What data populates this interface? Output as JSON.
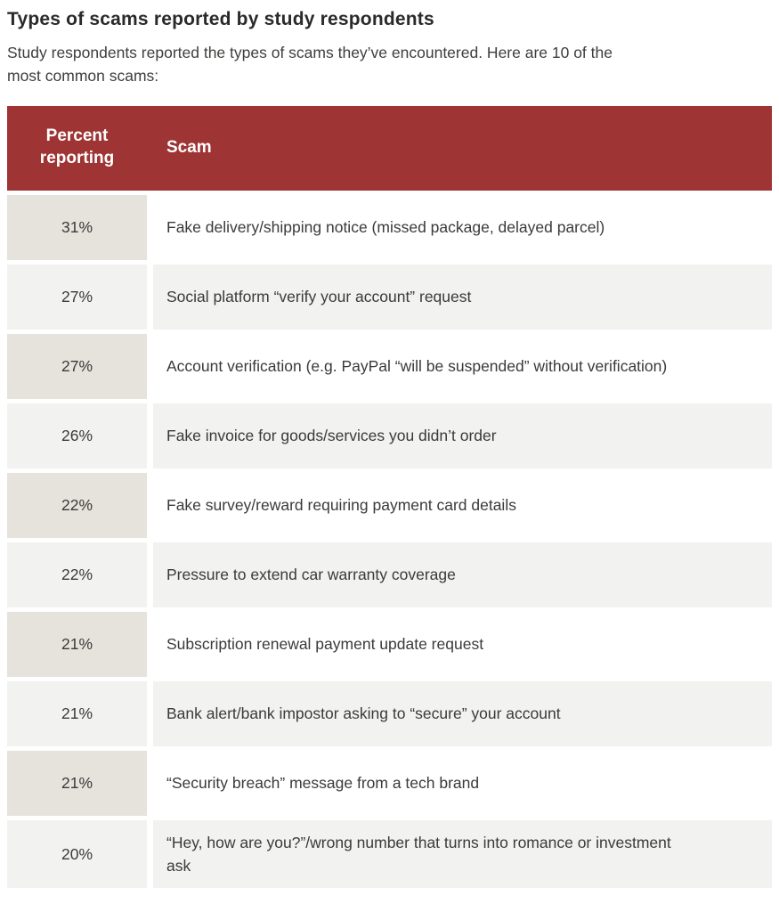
{
  "figure": {
    "title": "Types of scams reported by study respondents",
    "subtitle": "Study respondents reported the types of scams they’ve encountered. Here are 10 of the most common scams:"
  },
  "chart_data": {
    "type": "table",
    "title": "Types of scams reported by study respondents",
    "columns": [
      "Percent reporting",
      "Scam"
    ],
    "rows": [
      {
        "percent": "31%",
        "value": 31,
        "scam": "Fake delivery/shipping notice (missed package, delayed parcel)"
      },
      {
        "percent": "27%",
        "value": 27,
        "scam": "Social platform “verify your account” request"
      },
      {
        "percent": "27%",
        "value": 27,
        "scam": "Account verification (e.g. PayPal “will be suspended” without verification)"
      },
      {
        "percent": "26%",
        "value": 26,
        "scam": "Fake invoice for goods/services you didn’t order"
      },
      {
        "percent": "22%",
        "value": 22,
        "scam": "Fake survey/reward requiring payment card details"
      },
      {
        "percent": "22%",
        "value": 22,
        "scam": "Pressure to extend car warranty coverage"
      },
      {
        "percent": "21%",
        "value": 21,
        "scam": "Subscription renewal payment update request"
      },
      {
        "percent": "21%",
        "value": 21,
        "scam": "Bank alert/bank impostor asking to “secure” your account"
      },
      {
        "percent": "21%",
        "value": 21,
        "scam": "“Security breach” message from a tech brand"
      },
      {
        "percent": "20%",
        "value": 20,
        "scam": "“Hey, how are you?”/wrong number that turns into romance or investment ask"
      }
    ]
  },
  "colors": {
    "header_bg": "#9e3434",
    "header_text": "#ffffff",
    "odd_percent_bg": "#e6e2dc",
    "odd_scam_bg": "#ffffff",
    "even_bg": "#f2f2f0",
    "body_text": "#3b3a39",
    "title_text": "#2b2a29",
    "subtitle_text": "#403e3c"
  }
}
